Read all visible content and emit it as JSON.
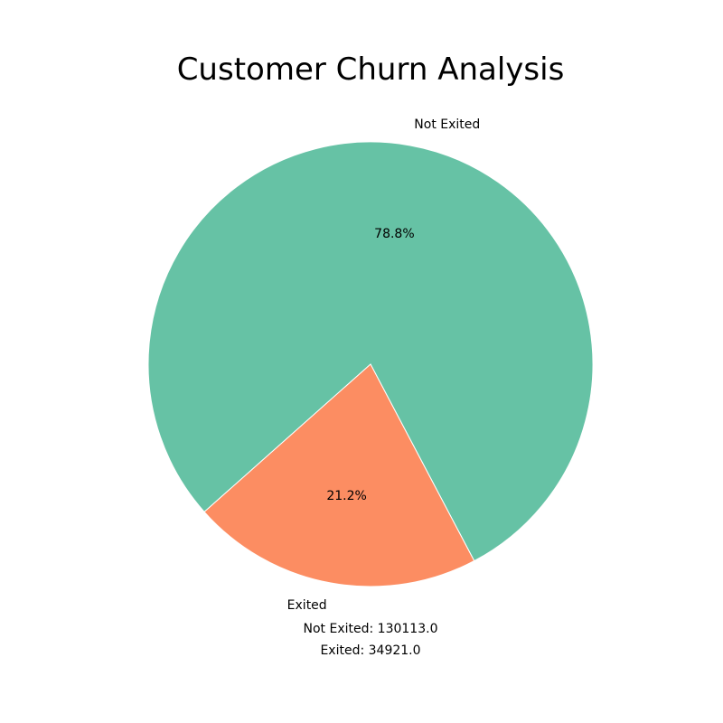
{
  "chart_data": {
    "type": "pie",
    "title": "Customer Churn Analysis",
    "slices": [
      {
        "label": "Not Exited",
        "value": 130113.0,
        "percent": "78.8%",
        "color": "#66c2a5"
      },
      {
        "label": "Exited",
        "value": 34921.0,
        "percent": "21.2%",
        "color": "#fc8d62"
      }
    ],
    "count_labels": [
      "Not Exited: 130113.0",
      "Exited: 34921.0"
    ]
  }
}
